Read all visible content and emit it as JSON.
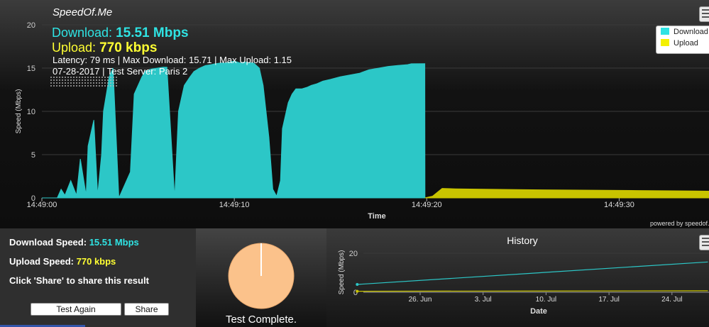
{
  "app": {
    "brand": "SpeedOf.Me",
    "powered_by": "powered by speedof.m"
  },
  "summary": {
    "download_label": "Download:",
    "download_value": "15.51 Mbps",
    "upload_label": "Upload:",
    "upload_value": "770 kbps",
    "stats_line": "Latency: 79 ms | Max Download: 15.71 | Max Upload: 1.15",
    "date_line": "07-28-2017 | Test Server: Paris 2"
  },
  "legend": {
    "download": "Download",
    "upload": "Upload"
  },
  "colors": {
    "download": "#2cc7c7",
    "upload": "#c9c400",
    "accent_download": "#2fe3e3",
    "accent_upload": "#ffff33",
    "pie": "#fbc28b"
  },
  "chart_data": [
    {
      "type": "area",
      "ylabel": "Speed (Mbps)",
      "xlabel": "Time",
      "ylim": [
        0,
        20
      ],
      "yticks": [
        0,
        5,
        10,
        15,
        20
      ],
      "xlim_seconds_after_14_49_00": [
        0,
        35
      ],
      "xticks": [
        "14:49:00",
        "14:49:10",
        "14:49:20",
        "14:49:30"
      ],
      "grid": true,
      "legend_position": "top-right",
      "series": [
        {
          "name": "Download",
          "color": "#2cc7c7",
          "x": [
            0,
            0.8,
            1.0,
            1.2,
            1.5,
            1.8,
            2.0,
            2.3,
            2.4,
            2.7,
            2.9,
            3.1,
            3.2,
            3.5,
            3.7,
            4.0,
            4.6,
            4.8,
            5.2,
            5.4,
            5.7,
            6.0,
            6.3,
            6.5,
            6.9,
            7.1,
            7.4,
            7.7,
            7.9,
            8.2,
            8.5,
            8.8,
            9.0,
            9.3,
            9.5,
            10.0,
            10.3,
            10.5,
            11.0,
            11.3,
            11.5,
            11.8,
            12.0,
            12.2,
            12.4,
            12.5,
            12.8,
            13.0,
            13.2,
            13.5,
            13.8,
            14.0,
            14.3,
            14.6,
            15.0,
            15.5,
            16.0,
            16.5,
            17.0,
            17.5,
            18.0,
            18.5,
            19.0,
            19.2,
            19.9,
            19.91
          ],
          "y": [
            0,
            0,
            1,
            0.3,
            2,
            0.3,
            4.5,
            0.3,
            6,
            9,
            0.3,
            5,
            10,
            14,
            15,
            0,
            3,
            12,
            14,
            14.7,
            14.9,
            15,
            15.1,
            15.1,
            0,
            10,
            13,
            14,
            14.6,
            15,
            15.3,
            15.4,
            15.5,
            15.6,
            15.6,
            15.8,
            15.6,
            15.7,
            15.6,
            15,
            13,
            7,
            1,
            0.2,
            2,
            8,
            11,
            12,
            12.6,
            12.6,
            12.8,
            13,
            13.2,
            13.5,
            13.7,
            14,
            14.2,
            14.4,
            14.8,
            15,
            15.2,
            15.3,
            15.4,
            15.5,
            15.51,
            0
          ]
        },
        {
          "name": "Upload",
          "color": "#c9c400",
          "x": [
            19.9,
            20.3,
            20.8,
            21.5,
            23,
            25,
            28,
            31,
            34,
            35
          ],
          "y": [
            0,
            0.2,
            1.1,
            1.05,
            1.0,
            0.95,
            0.9,
            0.85,
            0.8,
            0.77
          ]
        }
      ]
    },
    {
      "type": "line",
      "title": "History",
      "ylabel": "Speed (Mbps)",
      "xlabel": "Date",
      "ylim": [
        0,
        20
      ],
      "yticks": [
        0,
        20
      ],
      "xticks": [
        "26. Jun",
        "3. Jul",
        "10. Jul",
        "17. Jul",
        "24. Jul"
      ],
      "series": [
        {
          "name": "Download",
          "color": "#2cc7c7",
          "x": [
            "2017-06-19",
            "2017-07-28"
          ],
          "y": [
            4,
            15.51
          ]
        },
        {
          "name": "Upload",
          "color": "#c9c400",
          "x": [
            "2017-06-19",
            "2017-07-28"
          ],
          "y": [
            0.5,
            0.77
          ]
        }
      ]
    }
  ],
  "result_panel": {
    "download_label": "Download Speed:",
    "download_value": "15.51 Mbps",
    "upload_label": "Upload Speed:",
    "upload_value": "770 kbps",
    "share_hint": "Click 'Share' to share this result",
    "test_again": "Test Again",
    "share": "Share"
  },
  "progress": {
    "status": "Test Complete.",
    "fraction": 1.0
  }
}
